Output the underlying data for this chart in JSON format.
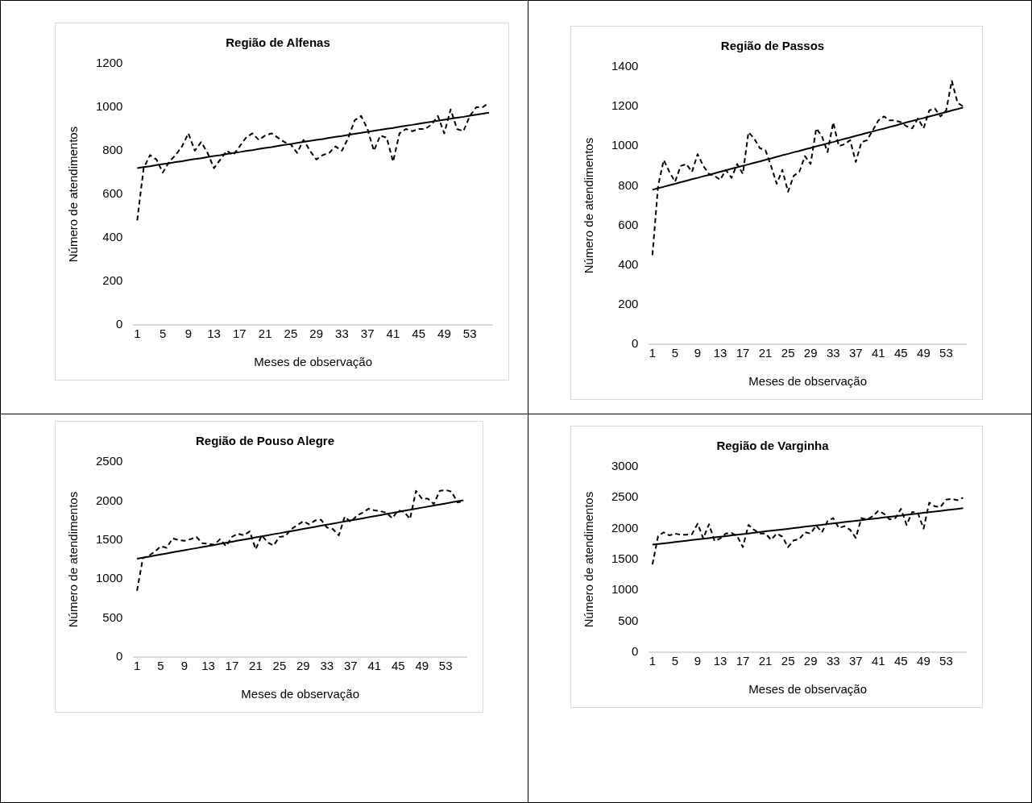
{
  "chart_data": [
    {
      "type": "line",
      "title": "Região de Alfenas",
      "xlabel": "Meses de observação",
      "ylabel": "Número de atendimentos",
      "x": [
        1,
        2,
        3,
        4,
        5,
        6,
        7,
        8,
        9,
        10,
        11,
        12,
        13,
        14,
        15,
        16,
        17,
        18,
        19,
        20,
        21,
        22,
        23,
        24,
        25,
        26,
        27,
        28,
        29,
        30,
        31,
        32,
        33,
        34,
        35,
        36,
        37,
        38,
        39,
        40,
        41,
        42,
        43,
        44,
        45,
        46,
        47,
        48,
        49,
        50,
        51,
        52,
        53,
        54,
        55,
        56
      ],
      "xlim": [
        0.5,
        56.5
      ],
      "xticks": [
        1,
        5,
        9,
        13,
        17,
        21,
        25,
        29,
        33,
        37,
        41,
        45,
        49,
        53
      ],
      "ylim": [
        0,
        1200
      ],
      "yticks": [
        0,
        200,
        400,
        600,
        800,
        1000,
        1200
      ],
      "grid": false,
      "legend": false,
      "marker": "none",
      "series": [
        {
          "color": "#000000",
          "line_style": "dashed",
          "values": [
            480,
            720,
            780,
            760,
            700,
            750,
            780,
            820,
            880,
            800,
            840,
            790,
            720,
            760,
            800,
            780,
            820,
            860,
            880,
            850,
            870,
            880,
            860,
            840,
            830,
            790,
            850,
            800,
            760,
            780,
            790,
            820,
            800,
            860,
            940,
            960,
            900,
            800,
            870,
            860,
            750,
            880,
            900,
            890,
            900,
            900,
            920,
            960,
            880,
            990,
            900,
            890,
            960,
            1000,
            1000,
            1020
          ]
        },
        {
          "type": "line",
          "color": "#000000",
          "line_style": "solid",
          "values": [
            720,
            725,
            729,
            734,
            739,
            743,
            748,
            752,
            757,
            762,
            766,
            771,
            776,
            780,
            785,
            790,
            794,
            799,
            803,
            808,
            813,
            817,
            822,
            827,
            831,
            836,
            841,
            845,
            850,
            854,
            859,
            864,
            868,
            873,
            878,
            882,
            887,
            892,
            896,
            901,
            905,
            910,
            915,
            919,
            924,
            929,
            933,
            938,
            943,
            947,
            952,
            956,
            961,
            966,
            970,
            975
          ]
        }
      ]
    },
    {
      "type": "line",
      "title": "Região de Passos",
      "xlabel": "Meses de observação",
      "ylabel": "Número de atendimentos",
      "x": [
        1,
        2,
        3,
        4,
        5,
        6,
        7,
        8,
        9,
        10,
        11,
        12,
        13,
        14,
        15,
        16,
        17,
        18,
        19,
        20,
        21,
        22,
        23,
        24,
        25,
        26,
        27,
        28,
        29,
        30,
        31,
        32,
        33,
        34,
        35,
        36,
        37,
        38,
        39,
        40,
        41,
        42,
        43,
        44,
        45,
        46,
        47,
        48,
        49,
        50,
        51,
        52,
        53,
        54,
        55,
        56
      ],
      "xlim": [
        0.5,
        56.5
      ],
      "xticks": [
        1,
        5,
        9,
        13,
        17,
        21,
        25,
        29,
        33,
        37,
        41,
        45,
        49,
        53
      ],
      "ylim": [
        0,
        1400
      ],
      "yticks": [
        0,
        200,
        400,
        600,
        800,
        1000,
        1200,
        1400
      ],
      "grid": false,
      "legend": false,
      "marker": "none",
      "series": [
        {
          "color": "#000000",
          "line_style": "dashed",
          "values": [
            450,
            800,
            930,
            870,
            820,
            900,
            910,
            870,
            960,
            900,
            860,
            850,
            830,
            880,
            840,
            910,
            860,
            1070,
            1040,
            990,
            980,
            900,
            810,
            880,
            770,
            850,
            870,
            950,
            910,
            1090,
            1050,
            970,
            1120,
            1000,
            1010,
            1030,
            920,
            1020,
            1030,
            1080,
            1130,
            1150,
            1130,
            1130,
            1120,
            1100,
            1090,
            1140,
            1090,
            1180,
            1190,
            1150,
            1180,
            1330,
            1220,
            1200
          ]
        },
        {
          "type": "line",
          "color": "#000000",
          "line_style": "solid",
          "values": [
            780,
            788,
            795,
            803,
            810,
            818,
            825,
            833,
            840,
            848,
            855,
            863,
            871,
            878,
            886,
            893,
            901,
            908,
            916,
            923,
            931,
            938,
            946,
            954,
            961,
            969,
            976,
            984,
            991,
            999,
            1006,
            1014,
            1021,
            1029,
            1037,
            1044,
            1052,
            1059,
            1067,
            1074,
            1082,
            1089,
            1097,
            1104,
            1112,
            1120,
            1127,
            1135,
            1142,
            1150,
            1157,
            1165,
            1172,
            1180,
            1187,
            1195
          ]
        }
      ]
    },
    {
      "type": "line",
      "title": "Região de Pouso Alegre",
      "xlabel": "Meses de observação",
      "ylabel": "Número de atendimentos",
      "x": [
        1,
        2,
        3,
        4,
        5,
        6,
        7,
        8,
        9,
        10,
        11,
        12,
        13,
        14,
        15,
        16,
        17,
        18,
        19,
        20,
        21,
        22,
        23,
        24,
        25,
        26,
        27,
        28,
        29,
        30,
        31,
        32,
        33,
        34,
        35,
        36,
        37,
        38,
        39,
        40,
        41,
        42,
        43,
        44,
        45,
        46,
        47,
        48,
        49,
        50,
        51,
        52,
        53,
        54,
        55,
        56
      ],
      "xlim": [
        0.5,
        56.5
      ],
      "xticks": [
        1,
        5,
        9,
        13,
        17,
        21,
        25,
        29,
        33,
        37,
        41,
        45,
        49,
        53
      ],
      "ylim": [
        0,
        2500
      ],
      "yticks": [
        0,
        500,
        1000,
        1500,
        2000,
        2500
      ],
      "grid": false,
      "legend": false,
      "marker": "none",
      "series": [
        {
          "color": "#000000",
          "line_style": "dashed",
          "values": [
            850,
            1270,
            1300,
            1350,
            1420,
            1400,
            1520,
            1500,
            1490,
            1510,
            1540,
            1460,
            1450,
            1440,
            1510,
            1420,
            1540,
            1580,
            1560,
            1610,
            1380,
            1560,
            1470,
            1430,
            1540,
            1550,
            1640,
            1690,
            1740,
            1700,
            1750,
            1760,
            1660,
            1640,
            1560,
            1800,
            1730,
            1810,
            1850,
            1900,
            1880,
            1870,
            1850,
            1780,
            1880,
            1860,
            1770,
            2130,
            2030,
            2030,
            1960,
            2130,
            2140,
            2120,
            1980,
            2000
          ]
        },
        {
          "type": "line",
          "color": "#000000",
          "line_style": "solid",
          "values": [
            1260,
            1274,
            1287,
            1301,
            1315,
            1328,
            1342,
            1355,
            1369,
            1383,
            1396,
            1410,
            1424,
            1437,
            1451,
            1465,
            1478,
            1492,
            1505,
            1519,
            1533,
            1546,
            1560,
            1574,
            1587,
            1601,
            1615,
            1628,
            1642,
            1655,
            1669,
            1683,
            1696,
            1710,
            1724,
            1737,
            1751,
            1765,
            1778,
            1792,
            1805,
            1819,
            1833,
            1846,
            1860,
            1874,
            1887,
            1901,
            1915,
            1928,
            1942,
            1955,
            1969,
            1983,
            1996,
            2010
          ]
        }
      ]
    },
    {
      "type": "line",
      "title": "Região de Varginha",
      "xlabel": "Meses de observação",
      "ylabel": "Número de atendimentos",
      "x": [
        1,
        2,
        3,
        4,
        5,
        6,
        7,
        8,
        9,
        10,
        11,
        12,
        13,
        14,
        15,
        16,
        17,
        18,
        19,
        20,
        21,
        22,
        23,
        24,
        25,
        26,
        27,
        28,
        29,
        30,
        31,
        32,
        33,
        34,
        35,
        36,
        37,
        38,
        39,
        40,
        41,
        42,
        43,
        44,
        45,
        46,
        47,
        48,
        49,
        50,
        51,
        52,
        53,
        54,
        55,
        56
      ],
      "xlim": [
        0.5,
        56.5
      ],
      "xticks": [
        1,
        5,
        9,
        13,
        17,
        21,
        25,
        29,
        33,
        37,
        41,
        45,
        49,
        53
      ],
      "ylim": [
        0,
        3000
      ],
      "yticks": [
        0,
        500,
        1000,
        1500,
        2000,
        2500,
        3000
      ],
      "grid": false,
      "legend": false,
      "marker": "none",
      "series": [
        {
          "color": "#000000",
          "line_style": "dashed",
          "values": [
            1420,
            1880,
            1940,
            1890,
            1920,
            1900,
            1900,
            1910,
            2080,
            1840,
            2070,
            1800,
            1840,
            1920,
            1930,
            1880,
            1700,
            2060,
            1980,
            1920,
            1920,
            1820,
            1920,
            1870,
            1700,
            1810,
            1830,
            1940,
            1920,
            2050,
            1940,
            2120,
            2170,
            2010,
            2040,
            1980,
            1850,
            2170,
            2150,
            2200,
            2290,
            2240,
            2150,
            2170,
            2320,
            2060,
            2270,
            2250,
            2000,
            2420,
            2360,
            2350,
            2470,
            2480,
            2460,
            2500
          ]
        },
        {
          "type": "line",
          "color": "#000000",
          "line_style": "solid",
          "values": [
            1740,
            1751,
            1761,
            1772,
            1783,
            1794,
            1804,
            1815,
            1826,
            1837,
            1847,
            1858,
            1869,
            1879,
            1890,
            1901,
            1912,
            1922,
            1933,
            1944,
            1955,
            1965,
            1976,
            1987,
            1997,
            2008,
            2019,
            2030,
            2040,
            2051,
            2062,
            2073,
            2083,
            2094,
            2105,
            2115,
            2126,
            2137,
            2148,
            2158,
            2169,
            2180,
            2191,
            2201,
            2212,
            2223,
            2233,
            2244,
            2255,
            2266,
            2276,
            2287,
            2298,
            2308,
            2319,
            2330
          ]
        }
      ]
    }
  ]
}
